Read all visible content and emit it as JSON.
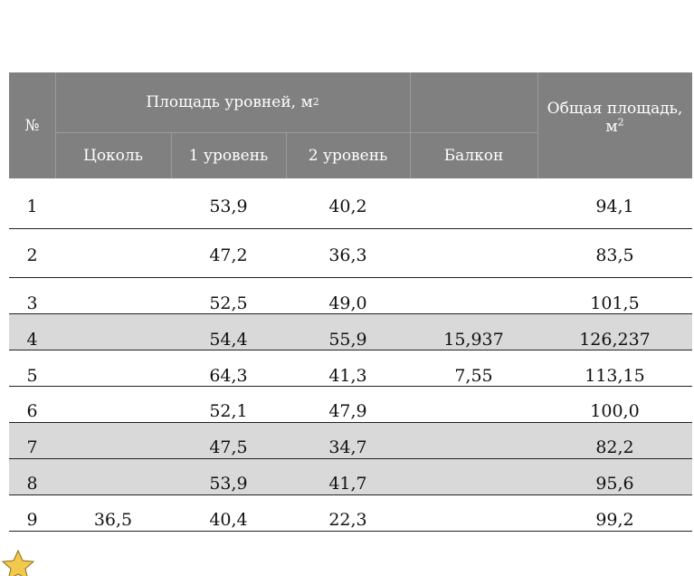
{
  "header": {
    "number": "№",
    "levels_area": "Площадь уровней, м",
    "levels_area_sup": "2",
    "total_area": "Общая площадь, м",
    "total_area_sup": "2",
    "sub": [
      "Цоколь",
      "1 уровень",
      "2 уровень",
      "Балкон"
    ]
  },
  "rows": [
    {
      "n": "1",
      "base": "",
      "l1": "53,9",
      "l2": "40,2",
      "balcony": "",
      "total": "94,1"
    },
    {
      "n": "2",
      "base": "",
      "l1": "47,2",
      "l2": "36,3",
      "balcony": "",
      "total": "83,5"
    },
    {
      "n": "3",
      "base": "",
      "l1": "52,5",
      "l2": "49,0",
      "balcony": "",
      "total": "101,5"
    },
    {
      "n": "4",
      "base": "",
      "l1": "54,4",
      "l2": "55,9",
      "balcony": "15,937",
      "total": "126,237"
    },
    {
      "n": "5",
      "base": "",
      "l1": "64,3",
      "l2": "41,3",
      "balcony": "7,55",
      "total": "113,15"
    },
    {
      "n": "6",
      "base": "",
      "l1": "52,1",
      "l2": "47,9",
      "balcony": "",
      "total": "100,0"
    },
    {
      "n": "7",
      "base": "",
      "l1": "47,5",
      "l2": "34,7",
      "balcony": "",
      "total": "82,2"
    },
    {
      "n": "8",
      "base": "",
      "l1": "53,9",
      "l2": "41,7",
      "balcony": "",
      "total": "95,6"
    },
    {
      "n": "9",
      "base": "36,5",
      "l1": "40,4",
      "l2": "22,3",
      "balcony": "",
      "total": "99,2"
    }
  ],
  "colors": {
    "header_bg": "#808080",
    "shaded_row": "#d9d9d9",
    "star": "#f2c94c"
  },
  "icons": {
    "corner": "star-icon"
  }
}
